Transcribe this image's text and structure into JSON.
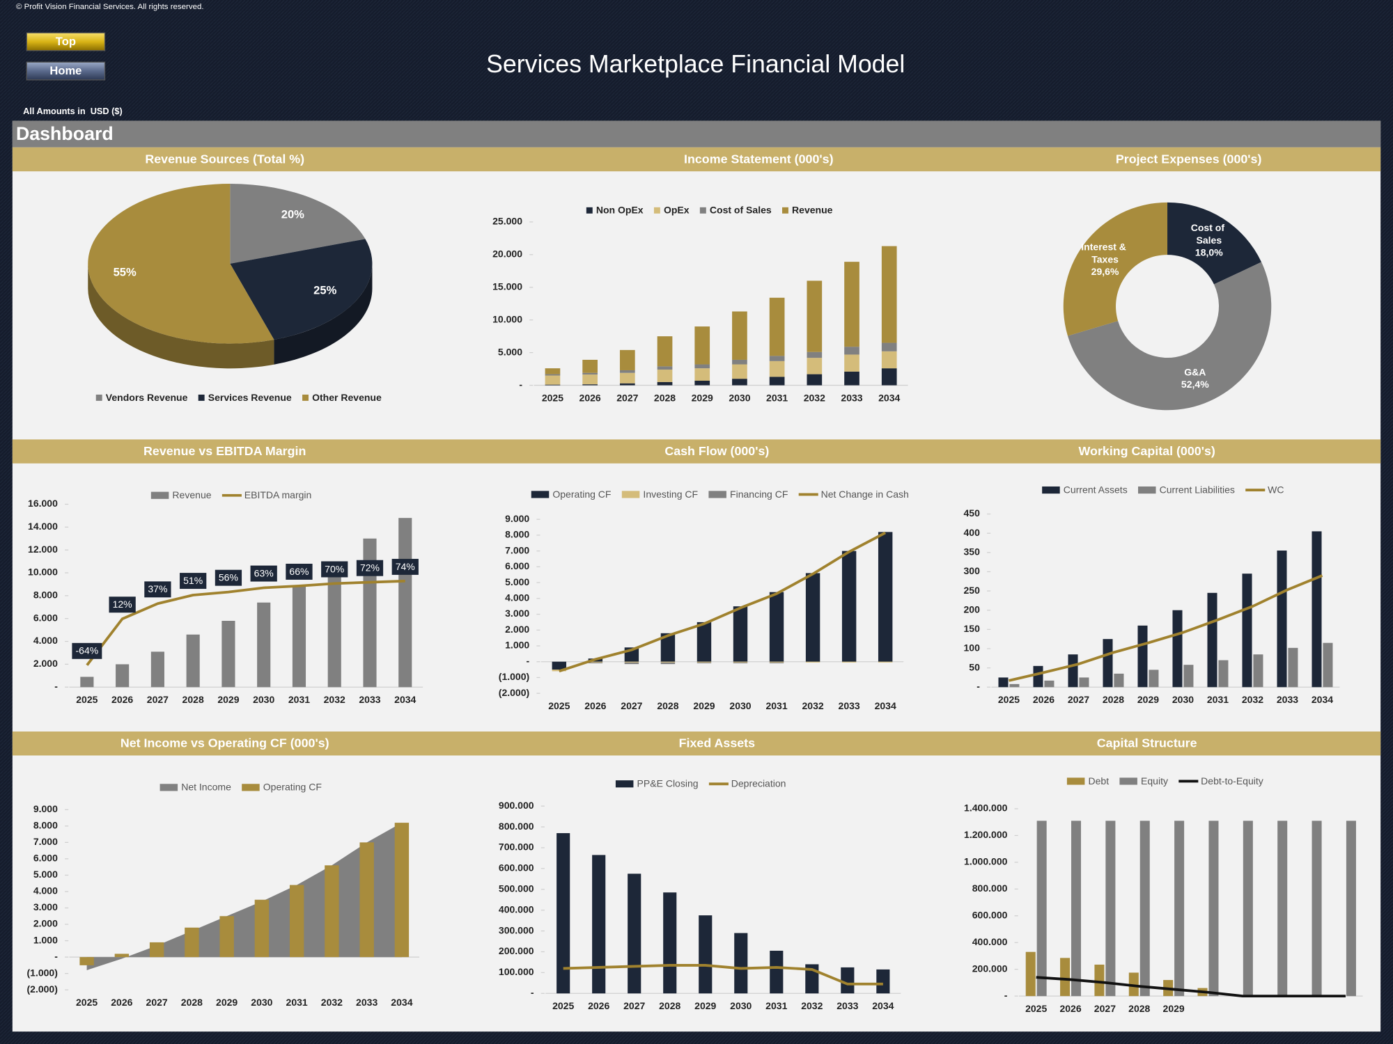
{
  "header": {
    "copyright": "© Profit Vision Financial Services. All rights reserved.",
    "buttons": [
      "Top",
      "Home"
    ],
    "title": "Services Marketplace Financial Model",
    "units": "All Amounts in  USD ($)",
    "section": "Dashboard"
  },
  "chart_data": [
    {
      "type": "pie",
      "title": "Revenue Sources (Total %)",
      "categories": [
        "Vendors Revenue",
        "Services Revenue",
        "Other Revenue"
      ],
      "values": [
        20,
        25,
        55
      ],
      "value_labels": [
        "20%",
        "25%",
        "55%"
      ],
      "colors": [
        "#808080",
        "#1d2738",
        "#a88c3d"
      ],
      "legend": "bottom"
    },
    {
      "type": "bar",
      "stacked": true,
      "title": "Income Statement (000's)",
      "categories": [
        "2025",
        "2026",
        "2027",
        "2028",
        "2029",
        "2030",
        "2031",
        "2032",
        "2033",
        "2034"
      ],
      "series": [
        {
          "name": "Non OpEx",
          "color": "#1d2738",
          "values": [
            100,
            150,
            300,
            500,
            700,
            1000,
            1300,
            1700,
            2100,
            2600
          ]
        },
        {
          "name": "OpEx",
          "color": "#d4bc7a",
          "values": [
            1400,
            1500,
            1600,
            1900,
            1900,
            2200,
            2400,
            2500,
            2600,
            2600
          ]
        },
        {
          "name": "Cost of Sales",
          "color": "#808080",
          "values": [
            200,
            250,
            400,
            500,
            600,
            700,
            800,
            900,
            1200,
            1300
          ]
        },
        {
          "name": "Revenue",
          "color": "#a88c3d",
          "values": [
            900,
            2000,
            3100,
            4600,
            5800,
            7400,
            8900,
            10900,
            13000,
            14800
          ]
        }
      ],
      "ylim": [
        0,
        25000
      ],
      "yticks": [
        {
          "value": 0,
          "label": "-"
        },
        {
          "value": 5000,
          "label": "5.000"
        },
        {
          "value": 10000,
          "label": "10.000"
        },
        {
          "value": 15000,
          "label": "15.000"
        },
        {
          "value": 20000,
          "label": "20.000"
        },
        {
          "value": 25000,
          "label": "25.000"
        }
      ],
      "grid": false,
      "legend": "top"
    },
    {
      "type": "donut",
      "title": "Project Expenses (000's)",
      "categories": [
        "Cost of Sales",
        "G&A",
        "Interest & Taxes"
      ],
      "values": [
        18.0,
        52.4,
        29.6
      ],
      "value_labels": [
        "18,0%",
        "52,4%",
        "29,6%"
      ],
      "colors": [
        "#1d2738",
        "#808080",
        "#a88c3d"
      ]
    },
    {
      "type": "combo",
      "title": "Revenue vs EBITDA Margin",
      "categories": [
        "2025",
        "2026",
        "2027",
        "2028",
        "2029",
        "2030",
        "2031",
        "2032",
        "2033",
        "2034"
      ],
      "series": [
        {
          "name": "Revenue",
          "type": "bar",
          "color": "#808080",
          "values": [
            900,
            2000,
            3100,
            4600,
            5800,
            7400,
            8900,
            10900,
            13000,
            14800
          ]
        },
        {
          "name": "EBITDA margin",
          "type": "line",
          "axis": "y2",
          "color": "#a0822e",
          "values": [
            -64,
            12,
            37,
            51,
            56,
            63,
            66,
            70,
            72,
            74
          ],
          "value_labels": [
            "-64%",
            "12%",
            "37%",
            "51%",
            "56%",
            "63%",
            "66%",
            "70%",
            "72%",
            "74%"
          ]
        }
      ],
      "ylim": [
        0,
        16000
      ],
      "yticks": [
        {
          "value": 0,
          "label": "-"
        },
        {
          "value": 2000,
          "label": "2.000"
        },
        {
          "value": 4000,
          "label": "4.000"
        },
        {
          "value": 6000,
          "label": "6.000"
        },
        {
          "value": 8000,
          "label": "8.000"
        },
        {
          "value": 10000,
          "label": "10.000"
        },
        {
          "value": 12000,
          "label": "12.000"
        },
        {
          "value": 14000,
          "label": "14.000"
        },
        {
          "value": 16000,
          "label": "16.000"
        }
      ],
      "y2lim": [
        -100,
        200
      ],
      "grid": false,
      "legend": "top"
    },
    {
      "type": "combo",
      "stacked": true,
      "title": "Cash Flow (000's)",
      "categories": [
        "2025",
        "2026",
        "2027",
        "2028",
        "2029",
        "2030",
        "2031",
        "2032",
        "2033",
        "2034"
      ],
      "series": [
        {
          "name": "Operating CF",
          "type": "bar",
          "color": "#1d2738",
          "values": [
            -500,
            200,
            900,
            1800,
            2500,
            3500,
            4400,
            5600,
            7000,
            8200
          ]
        },
        {
          "name": "Investing CF",
          "type": "bar",
          "color": "#d4bc7a",
          "values": [
            -100,
            -50,
            -50,
            -50,
            -50,
            -50,
            -50,
            -50,
            -50,
            -50
          ]
        },
        {
          "name": "Financing CF",
          "type": "bar",
          "color": "#808080",
          "values": [
            0,
            -50,
            -100,
            -100,
            -50,
            -50,
            -50,
            0,
            0,
            0
          ]
        },
        {
          "name": "Net Change in Cash",
          "type": "line",
          "color": "#a0822e",
          "values": [
            -600,
            150,
            750,
            1650,
            2400,
            3400,
            4300,
            5550,
            6950,
            8150
          ]
        }
      ],
      "ylim": [
        -2000,
        9000
      ],
      "yticks": [
        {
          "value": -2000,
          "label": "(2.000)"
        },
        {
          "value": -1000,
          "label": "(1.000)"
        },
        {
          "value": 0,
          "label": "-"
        },
        {
          "value": 1000,
          "label": "1.000"
        },
        {
          "value": 2000,
          "label": "2.000"
        },
        {
          "value": 3000,
          "label": "3.000"
        },
        {
          "value": 4000,
          "label": "4.000"
        },
        {
          "value": 5000,
          "label": "5.000"
        },
        {
          "value": 6000,
          "label": "6.000"
        },
        {
          "value": 7000,
          "label": "7.000"
        },
        {
          "value": 8000,
          "label": "8.000"
        },
        {
          "value": 9000,
          "label": "9.000"
        }
      ],
      "grid": false,
      "legend": "top"
    },
    {
      "type": "combo",
      "title": "Working Capital (000's)",
      "categories": [
        "2025",
        "2026",
        "2027",
        "2028",
        "2029",
        "2030",
        "2031",
        "2032",
        "2033",
        "2034"
      ],
      "series": [
        {
          "name": "Current Assets",
          "type": "bar",
          "color": "#1d2738",
          "values": [
            25,
            55,
            85,
            125,
            160,
            200,
            245,
            295,
            355,
            405
          ]
        },
        {
          "name": "Current Liabilities",
          "type": "bar",
          "color": "#808080",
          "values": [
            8,
            17,
            25,
            35,
            45,
            58,
            70,
            85,
            102,
            115
          ]
        },
        {
          "name": "WC",
          "type": "line",
          "color": "#a0822e",
          "values": [
            17,
            38,
            60,
            90,
            115,
            142,
            175,
            210,
            253,
            290
          ]
        }
      ],
      "ylim": [
        0,
        450
      ],
      "yticks": [
        {
          "value": 0,
          "label": "-"
        },
        50,
        100,
        150,
        200,
        250,
        300,
        350,
        400,
        450
      ],
      "grid": false,
      "legend": "top"
    },
    {
      "type": "combo",
      "title": "Net Income vs Operating CF (000's)",
      "categories": [
        "2025",
        "2026",
        "2027",
        "2028",
        "2029",
        "2030",
        "2031",
        "2032",
        "2033",
        "2034"
      ],
      "series": [
        {
          "name": "Net Income",
          "type": "area",
          "color": "#808080",
          "values": [
            -800,
            -100,
            700,
            1600,
            2500,
            3400,
            4400,
            5600,
            7000,
            8200
          ]
        },
        {
          "name": "Operating CF",
          "type": "bar",
          "color": "#a88c3d",
          "values": [
            -500,
            200,
            900,
            1800,
            2500,
            3500,
            4400,
            5600,
            7000,
            8200
          ]
        }
      ],
      "ylim": [
        -2000,
        9000
      ],
      "yticks": [
        {
          "value": -2000,
          "label": "(2.000)"
        },
        {
          "value": -1000,
          "label": "(1.000)"
        },
        {
          "value": 0,
          "label": "-"
        },
        {
          "value": 1000,
          "label": "1.000"
        },
        {
          "value": 2000,
          "label": "2.000"
        },
        {
          "value": 3000,
          "label": "3.000"
        },
        {
          "value": 4000,
          "label": "4.000"
        },
        {
          "value": 5000,
          "label": "5.000"
        },
        {
          "value": 6000,
          "label": "6.000"
        },
        {
          "value": 7000,
          "label": "7.000"
        },
        {
          "value": 8000,
          "label": "8.000"
        },
        {
          "value": 9000,
          "label": "9.000"
        }
      ],
      "grid": false,
      "legend": "top"
    },
    {
      "type": "combo",
      "title": "Fixed Assets",
      "categories": [
        "2025",
        "2026",
        "2027",
        "2028",
        "2029",
        "2030",
        "2031",
        "2032",
        "2033",
        "2034"
      ],
      "series": [
        {
          "name": "PP&E Closing",
          "type": "bar",
          "color": "#1d2738",
          "values": [
            770000,
            665000,
            575000,
            485000,
            375000,
            290000,
            205000,
            140000,
            125000,
            115000
          ]
        },
        {
          "name": "Depreciation",
          "type": "line",
          "color": "#a0822e",
          "values": [
            120000,
            125000,
            130000,
            135000,
            135000,
            120000,
            125000,
            115000,
            45000,
            45000
          ]
        }
      ],
      "ylim": [
        0,
        900000
      ],
      "yticks": [
        {
          "value": 0,
          "label": "-"
        },
        {
          "value": 100000,
          "label": "100.000"
        },
        {
          "value": 200000,
          "label": "200.000"
        },
        {
          "value": 300000,
          "label": "300.000"
        },
        {
          "value": 400000,
          "label": "400.000"
        },
        {
          "value": 500000,
          "label": "500.000"
        },
        {
          "value": 600000,
          "label": "600.000"
        },
        {
          "value": 700000,
          "label": "700.000"
        },
        {
          "value": 800000,
          "label": "800.000"
        },
        {
          "value": 900000,
          "label": "900.000"
        }
      ],
      "grid": false,
      "legend": "top"
    },
    {
      "type": "combo",
      "title": "Capital Structure",
      "categories": [
        "2025",
        "2026",
        "2027",
        "2028",
        "2029",
        null,
        null,
        null,
        null,
        null
      ],
      "series": [
        {
          "name": "Debt",
          "type": "bar",
          "color": "#a88c3d",
          "values": [
            330000,
            285000,
            235000,
            175000,
            120000,
            60000,
            0,
            0,
            0,
            0
          ]
        },
        {
          "name": "Equity",
          "type": "bar",
          "color": "#808080",
          "values": [
            1310000,
            1310000,
            1310000,
            1310000,
            1310000,
            1310000,
            1310000,
            1310000,
            1310000,
            1310000
          ]
        },
        {
          "name": "Debt-to-Equity",
          "type": "line",
          "axis": "y2",
          "color": "#111111",
          "values": [
            0.25,
            0.22,
            0.18,
            0.13,
            0.09,
            0.05,
            0,
            0,
            0,
            0
          ]
        }
      ],
      "ylim": [
        0,
        1400000
      ],
      "yticks": [
        {
          "value": 0,
          "label": "-"
        },
        {
          "value": 200000,
          "label": "200.000"
        },
        {
          "value": 400000,
          "label": "400.000"
        },
        {
          "value": 600000,
          "label": "600.000"
        },
        {
          "value": 800000,
          "label": "800.000"
        },
        {
          "value": 1000000,
          "label": "1.000.000"
        },
        {
          "value": 1200000,
          "label": "1.200.000"
        },
        {
          "value": 1400000,
          "label": "1.400.000"
        }
      ],
      "y2lim": [
        0,
        2.5
      ],
      "grid": false,
      "legend": "top"
    }
  ]
}
